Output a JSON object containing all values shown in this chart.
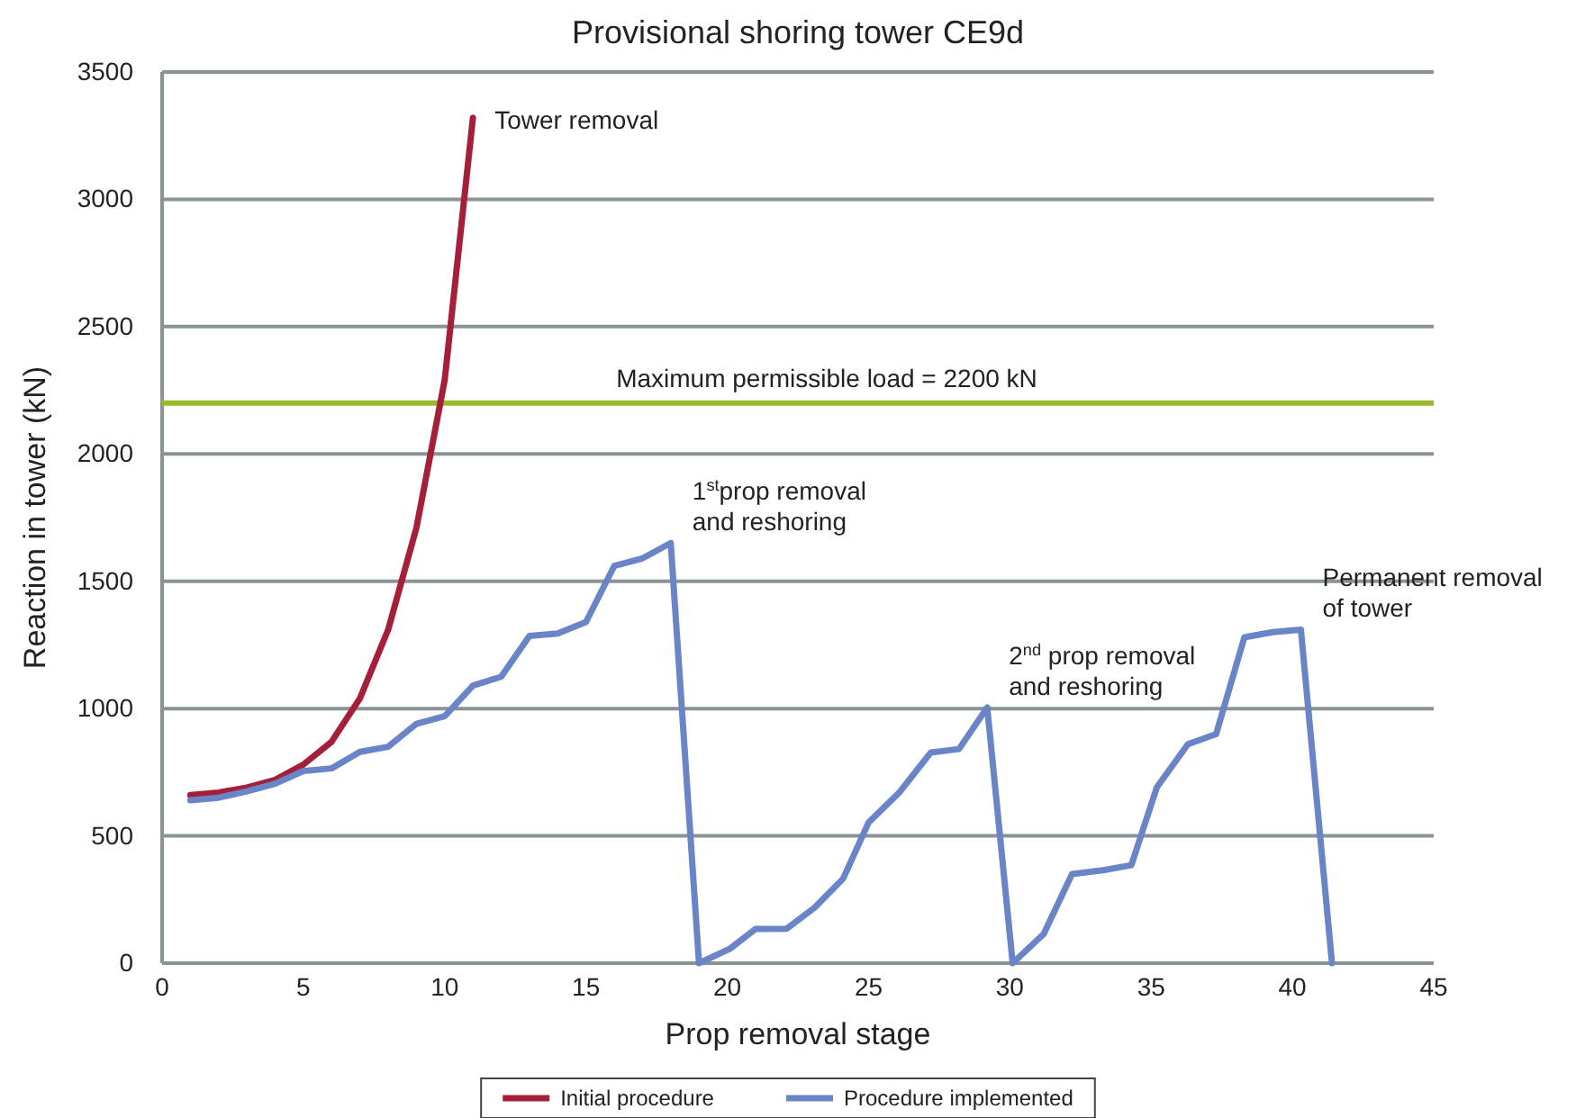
{
  "chart_data": {
    "type": "line",
    "title": "Provisional shoring tower CE9d",
    "xlabel": "Prop removal stage",
    "ylabel": "Reaction in tower (kN)",
    "xlim": [
      0,
      45
    ],
    "xticks": [
      0,
      5,
      10,
      15,
      20,
      25,
      30,
      35,
      40,
      45
    ],
    "ylim": [
      0,
      3500
    ],
    "yticks": [
      0,
      500,
      1000,
      1500,
      2000,
      2500,
      3000,
      3500
    ],
    "grid": "y",
    "legend": "bottom",
    "marker": "none",
    "line_style": "solid",
    "series": [
      {
        "name": "Initial procedure",
        "color": "#a51f3a",
        "x": [
          1,
          2,
          3,
          4,
          5,
          6,
          7,
          8,
          9,
          10,
          11
        ],
        "values": [
          660,
          670,
          690,
          720,
          780,
          870,
          1040,
          1310,
          1710,
          2290,
          3320
        ]
      },
      {
        "name": "Procedure implemented",
        "color": "#6a84c8",
        "x": [
          1,
          2,
          3,
          4,
          5,
          6,
          7,
          8,
          9,
          10,
          11,
          12,
          13,
          14,
          15,
          16,
          17,
          18,
          19,
          20.1,
          21,
          22.1,
          23.1,
          24.1,
          25,
          26.1,
          27.2,
          28.2,
          29.2,
          30.1,
          31.2,
          32.2,
          33.3,
          34.3,
          35.2,
          36.3,
          37.3,
          38.3,
          39.3,
          40.3,
          41.4
        ],
        "values": [
          640,
          650,
          675,
          705,
          755,
          765,
          830,
          850,
          940,
          970,
          1090,
          1125,
          1285,
          1295,
          1340,
          1560,
          1590,
          1650,
          0,
          57,
          134,
          135,
          219,
          332,
          552,
          672,
          827,
          841,
          1004,
          0,
          115,
          350,
          365,
          385,
          690,
          860,
          900,
          1280,
          1300,
          1310,
          0
        ]
      }
    ],
    "ref_lines": [
      {
        "axis": "y",
        "value": 2200,
        "label": "Maximum permissible load = 2200 kN",
        "color": "#9bbb2c"
      }
    ],
    "annotations": [
      {
        "text": "Tower removal",
        "x": 11,
        "y": 3320
      },
      {
        "text": "1$^{st}$prop removal\nand reshoring",
        "x": 18,
        "y": 1650
      },
      {
        "text": "2$^{nd}$ prop removal\nand reshoring",
        "x": 29.2,
        "y": 1004
      },
      {
        "text": "Permanent removal\nof tower",
        "x": 40.3,
        "y": 1310
      }
    ]
  }
}
